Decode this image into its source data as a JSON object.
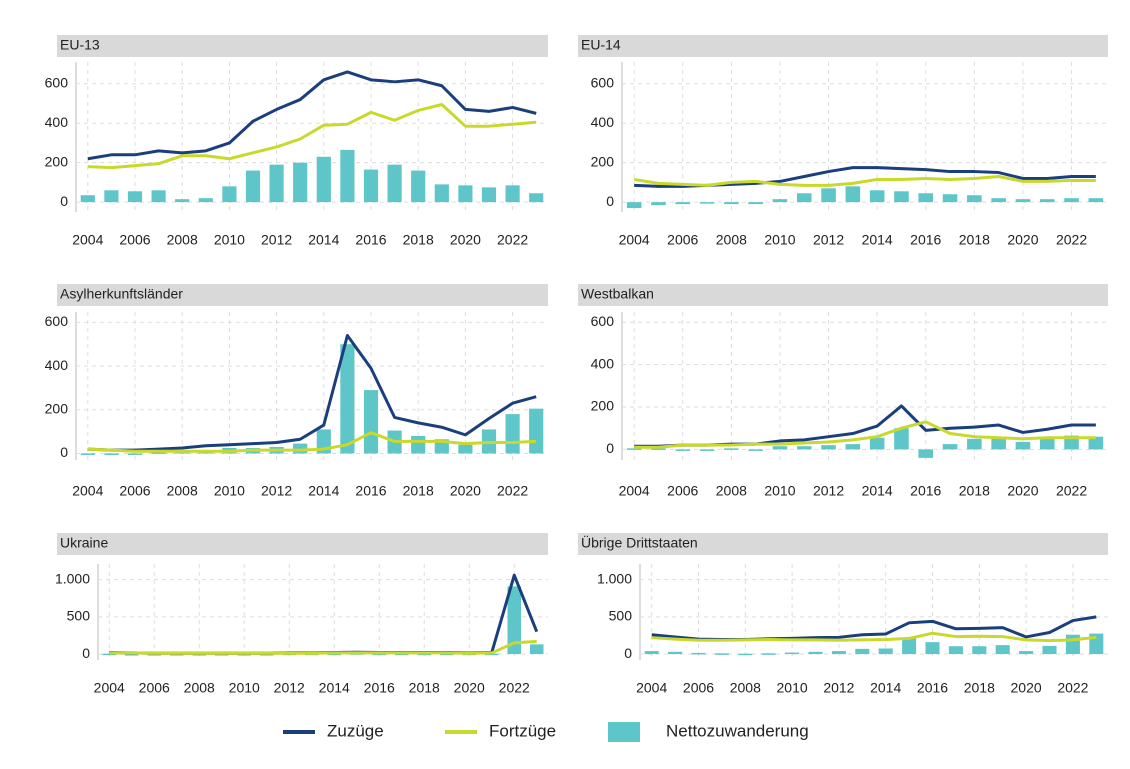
{
  "legend": [
    {
      "name": "Zuzüge",
      "color": "#1b3f7c",
      "kind": "line"
    },
    {
      "name": "Fortzüge",
      "color": "#c9d92c",
      "kind": "line"
    },
    {
      "name": "Nettozuwanderung",
      "color": "#5ec5c8",
      "kind": "bar"
    }
  ],
  "chart_data": [
    {
      "type": "line",
      "title": "EU-13",
      "x": [
        2004,
        2005,
        2006,
        2007,
        2008,
        2009,
        2010,
        2011,
        2012,
        2013,
        2014,
        2015,
        2016,
        2017,
        2018,
        2019,
        2020,
        2021,
        2022,
        2023
      ],
      "xlim": [
        2003.5,
        2023.5
      ],
      "xticks": [
        2004,
        2006,
        2008,
        2010,
        2012,
        2014,
        2016,
        2018,
        2020,
        2022
      ],
      "ylim": [
        -50,
        680
      ],
      "yticks": [
        0,
        200,
        400,
        600
      ],
      "series": [
        {
          "values": [
            220,
            240,
            240,
            260,
            250,
            260,
            300,
            410,
            470,
            520,
            620,
            660,
            620,
            610,
            620,
            590,
            470,
            460,
            480,
            450
          ]
        },
        {
          "values": [
            180,
            175,
            185,
            195,
            235,
            235,
            220,
            250,
            280,
            320,
            390,
            395,
            455,
            415,
            465,
            495,
            385,
            385,
            395,
            405
          ]
        },
        {
          "values": [
            35,
            60,
            55,
            60,
            15,
            20,
            80,
            160,
            190,
            200,
            230,
            265,
            165,
            190,
            160,
            90,
            85,
            75,
            85,
            45
          ]
        }
      ]
    },
    {
      "type": "line",
      "title": "EU-14",
      "x": [
        2004,
        2005,
        2006,
        2007,
        2008,
        2009,
        2010,
        2011,
        2012,
        2013,
        2014,
        2015,
        2016,
        2017,
        2018,
        2019,
        2020,
        2021,
        2022,
        2023
      ],
      "xlim": [
        2003.5,
        2023.5
      ],
      "xticks": [
        2004,
        2006,
        2008,
        2010,
        2012,
        2014,
        2016,
        2018,
        2020,
        2022
      ],
      "ylim": [
        -50,
        680
      ],
      "yticks": [
        0,
        200,
        400,
        600
      ],
      "series": [
        {
          "values": [
            85,
            80,
            80,
            85,
            90,
            95,
            105,
            130,
            155,
            175,
            175,
            170,
            165,
            155,
            155,
            150,
            120,
            120,
            130,
            130
          ]
        },
        {
          "values": [
            115,
            95,
            90,
            85,
            100,
            105,
            90,
            85,
            85,
            95,
            115,
            115,
            120,
            115,
            120,
            130,
            105,
            105,
            110,
            110
          ]
        },
        {
          "values": [
            -30,
            -15,
            -10,
            -5,
            -10,
            -10,
            15,
            45,
            70,
            80,
            60,
            55,
            45,
            40,
            35,
            20,
            15,
            15,
            20,
            20
          ]
        }
      ]
    },
    {
      "type": "line",
      "title": "Asylherkunftsländer",
      "x": [
        2004,
        2005,
        2006,
        2007,
        2008,
        2009,
        2010,
        2011,
        2012,
        2013,
        2014,
        2015,
        2016,
        2017,
        2018,
        2019,
        2020,
        2021,
        2022,
        2023
      ],
      "xlim": [
        2003.5,
        2023.5
      ],
      "xticks": [
        2004,
        2006,
        2008,
        2010,
        2012,
        2014,
        2016,
        2018,
        2020,
        2022
      ],
      "ylim": [
        -30,
        620
      ],
      "yticks": [
        0,
        200,
        400,
        600
      ],
      "series": [
        {
          "values": [
            20,
            15,
            15,
            20,
            25,
            35,
            40,
            45,
            50,
            65,
            130,
            540,
            390,
            165,
            140,
            120,
            85,
            160,
            230,
            260
          ]
        },
        {
          "values": [
            20,
            15,
            10,
            10,
            10,
            10,
            10,
            15,
            15,
            15,
            20,
            40,
            95,
            55,
            55,
            55,
            45,
            50,
            50,
            55
          ]
        },
        {
          "values": [
            0,
            -5,
            -5,
            5,
            10,
            15,
            25,
            25,
            30,
            45,
            110,
            500,
            290,
            105,
            80,
            65,
            40,
            110,
            180,
            205
          ]
        }
      ]
    },
    {
      "type": "line",
      "title": "Westbalkan",
      "x": [
        2004,
        2005,
        2006,
        2007,
        2008,
        2009,
        2010,
        2011,
        2012,
        2013,
        2014,
        2015,
        2016,
        2017,
        2018,
        2019,
        2020,
        2021,
        2022,
        2023
      ],
      "xlim": [
        2003.5,
        2023.5
      ],
      "xticks": [
        2004,
        2006,
        2008,
        2010,
        2012,
        2014,
        2016,
        2018,
        2020,
        2022
      ],
      "ylim": [
        -50,
        620
      ],
      "yticks": [
        0,
        200,
        400,
        600
      ],
      "series": [
        {
          "values": [
            15,
            15,
            20,
            20,
            25,
            25,
            40,
            45,
            60,
            75,
            110,
            205,
            90,
            100,
            105,
            115,
            80,
            95,
            115,
            115
          ]
        },
        {
          "values": [
            10,
            10,
            20,
            20,
            20,
            25,
            25,
            30,
            35,
            45,
            60,
            100,
            130,
            75,
            60,
            55,
            50,
            55,
            55,
            55
          ]
        },
        {
          "values": [
            5,
            5,
            -5,
            0,
            5,
            0,
            15,
            15,
            20,
            25,
            55,
            100,
            -40,
            25,
            50,
            55,
            35,
            50,
            65,
            60
          ]
        }
      ]
    },
    {
      "type": "line",
      "title": "Ukraine",
      "x": [
        2004,
        2005,
        2006,
        2007,
        2008,
        2009,
        2010,
        2011,
        2012,
        2013,
        2014,
        2015,
        2016,
        2017,
        2018,
        2019,
        2020,
        2021,
        2022,
        2023
      ],
      "xlim": [
        2003.5,
        2023.5
      ],
      "xticks": [
        2004,
        2006,
        2008,
        2010,
        2012,
        2014,
        2016,
        2018,
        2020,
        2022
      ],
      "ylim": [
        -80,
        1130
      ],
      "yticks": [
        0,
        500,
        {
          "value": 1000,
          "label": "1.000"
        }
      ],
      "series": [
        {
          "values": [
            20,
            15,
            10,
            10,
            10,
            10,
            10,
            10,
            15,
            15,
            20,
            25,
            20,
            20,
            20,
            20,
            15,
            20,
            1060,
            300
          ]
        },
        {
          "values": [
            15,
            15,
            10,
            10,
            10,
            10,
            10,
            10,
            10,
            10,
            15,
            15,
            15,
            15,
            15,
            15,
            10,
            15,
            150,
            170
          ]
        },
        {
          "values": [
            5,
            0,
            0,
            0,
            0,
            0,
            0,
            0,
            5,
            5,
            5,
            10,
            5,
            5,
            5,
            5,
            5,
            5,
            910,
            130
          ]
        }
      ]
    },
    {
      "type": "line",
      "title": "Übrige Drittstaaten",
      "x": [
        2004,
        2005,
        2006,
        2007,
        2008,
        2009,
        2010,
        2011,
        2012,
        2013,
        2014,
        2015,
        2016,
        2017,
        2018,
        2019,
        2020,
        2021,
        2022,
        2023
      ],
      "xlim": [
        2003.5,
        2023.5
      ],
      "xticks": [
        2004,
        2006,
        2008,
        2010,
        2012,
        2014,
        2016,
        2018,
        2020,
        2022
      ],
      "ylim": [
        -80,
        1130
      ],
      "yticks": [
        0,
        500,
        {
          "value": 1000,
          "label": "1.000"
        }
      ],
      "series": [
        {
          "values": [
            260,
            230,
            200,
            195,
            195,
            205,
            210,
            220,
            225,
            260,
            270,
            420,
            440,
            340,
            345,
            355,
            230,
            290,
            450,
            500
          ]
        },
        {
          "values": [
            220,
            200,
            185,
            185,
            190,
            195,
            190,
            190,
            185,
            190,
            195,
            210,
            280,
            235,
            240,
            235,
            190,
            180,
            190,
            225
          ]
        },
        {
          "values": [
            40,
            30,
            15,
            10,
            5,
            10,
            20,
            30,
            40,
            70,
            75,
            210,
            160,
            105,
            105,
            120,
            40,
            110,
            260,
            275
          ]
        }
      ]
    }
  ]
}
